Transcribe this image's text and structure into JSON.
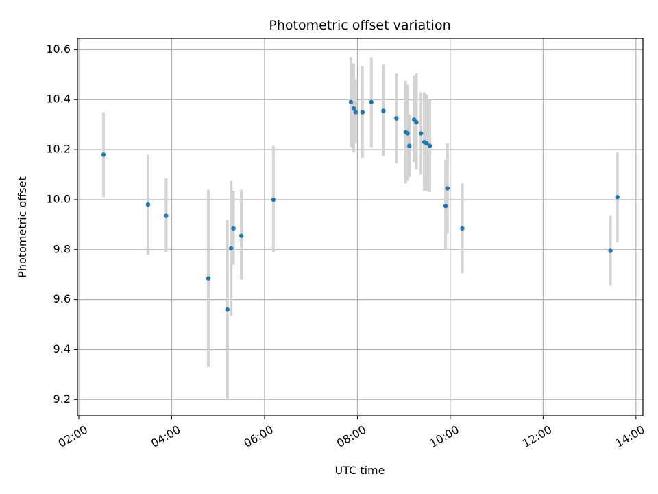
{
  "chart_data": {
    "type": "scatter",
    "title": "Photometric offset variation",
    "xlabel": "UTC time",
    "ylabel": "Photometric offset",
    "x_unit": "hours UTC",
    "xlim": [
      1.97,
      14.15
    ],
    "ylim": [
      9.135,
      10.645
    ],
    "grid": true,
    "x_ticks": [
      2,
      4,
      6,
      8,
      10,
      12,
      14
    ],
    "x_tick_labels": [
      "02:00",
      "04:00",
      "06:00",
      "08:00",
      "10:00",
      "12:00",
      "14:00"
    ],
    "y_ticks": [
      9.2,
      9.4,
      9.6,
      9.8,
      10.0,
      10.2,
      10.4,
      10.6
    ],
    "y_tick_labels": [
      "9.2",
      "9.4",
      "9.6",
      "9.8",
      "10.0",
      "10.2",
      "10.4",
      "10.6"
    ],
    "colors": {
      "point": "#1f77b4",
      "errorbar": "#d3d3d3",
      "grid": "#b0b0b0"
    },
    "series": [
      {
        "points": [
          {
            "x": 2.53,
            "y": 10.18,
            "lo": 10.01,
            "hi": 10.35
          },
          {
            "x": 3.49,
            "y": 9.98,
            "lo": 9.78,
            "hi": 10.18
          },
          {
            "x": 3.88,
            "y": 9.935,
            "lo": 9.79,
            "hi": 10.085
          },
          {
            "x": 4.79,
            "y": 9.685,
            "lo": 9.33,
            "hi": 10.04
          },
          {
            "x": 5.2,
            "y": 9.56,
            "lo": 9.2,
            "hi": 9.92
          },
          {
            "x": 5.28,
            "y": 9.805,
            "lo": 9.535,
            "hi": 10.075
          },
          {
            "x": 5.33,
            "y": 9.885,
            "lo": 9.74,
            "hi": 10.035
          },
          {
            "x": 5.5,
            "y": 9.855,
            "lo": 9.68,
            "hi": 10.04
          },
          {
            "x": 6.19,
            "y": 10.0,
            "lo": 9.79,
            "hi": 10.215
          },
          {
            "x": 7.86,
            "y": 10.39,
            "lo": 10.21,
            "hi": 10.57
          },
          {
            "x": 7.92,
            "y": 10.365,
            "lo": 10.19,
            "hi": 10.545
          },
          {
            "x": 7.96,
            "y": 10.35,
            "lo": 10.225,
            "hi": 10.48
          },
          {
            "x": 8.11,
            "y": 10.35,
            "lo": 10.165,
            "hi": 10.535
          },
          {
            "x": 8.3,
            "y": 10.39,
            "lo": 10.21,
            "hi": 10.57
          },
          {
            "x": 8.56,
            "y": 10.355,
            "lo": 10.175,
            "hi": 10.54
          },
          {
            "x": 8.84,
            "y": 10.325,
            "lo": 10.145,
            "hi": 10.505
          },
          {
            "x": 9.04,
            "y": 10.27,
            "lo": 10.065,
            "hi": 10.475
          },
          {
            "x": 9.08,
            "y": 10.265,
            "lo": 10.075,
            "hi": 10.46
          },
          {
            "x": 9.12,
            "y": 10.215,
            "lo": 10.09,
            "hi": 10.34
          },
          {
            "x": 9.22,
            "y": 10.32,
            "lo": 10.15,
            "hi": 10.495
          },
          {
            "x": 9.27,
            "y": 10.31,
            "lo": 10.12,
            "hi": 10.505
          },
          {
            "x": 9.37,
            "y": 10.265,
            "lo": 10.1,
            "hi": 10.43
          },
          {
            "x": 9.44,
            "y": 10.23,
            "lo": 10.035,
            "hi": 10.43
          },
          {
            "x": 9.49,
            "y": 10.225,
            "lo": 10.035,
            "hi": 10.42
          },
          {
            "x": 9.56,
            "y": 10.215,
            "lo": 10.03,
            "hi": 10.4
          },
          {
            "x": 9.9,
            "y": 9.975,
            "lo": 9.8,
            "hi": 10.16
          },
          {
            "x": 9.94,
            "y": 10.045,
            "lo": 9.865,
            "hi": 10.225
          },
          {
            "x": 10.26,
            "y": 9.885,
            "lo": 9.705,
            "hi": 10.065
          },
          {
            "x": 13.45,
            "y": 9.795,
            "lo": 9.655,
            "hi": 9.935
          },
          {
            "x": 13.6,
            "y": 10.01,
            "lo": 9.83,
            "hi": 10.19
          }
        ]
      }
    ]
  }
}
